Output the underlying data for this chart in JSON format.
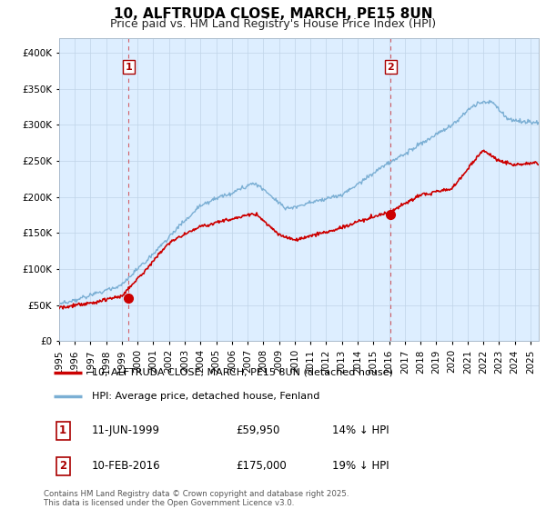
{
  "title": "10, ALFTRUDA CLOSE, MARCH, PE15 8UN",
  "subtitle": "Price paid vs. HM Land Registry's House Price Index (HPI)",
  "ylim": [
    0,
    420000
  ],
  "yticks": [
    0,
    50000,
    100000,
    150000,
    200000,
    250000,
    300000,
    350000,
    400000
  ],
  "legend_line1": "10, ALFTRUDA CLOSE, MARCH, PE15 8UN (detached house)",
  "legend_line2": "HPI: Average price, detached house, Fenland",
  "line_color": "#cc0000",
  "hpi_color": "#7bafd4",
  "marker1_date": 1999.44,
  "marker2_date": 2016.1,
  "marker1_value": 59950,
  "marker2_value": 175000,
  "annotation1": "11-JUN-1999",
  "annotation1_price": "£59,950",
  "annotation1_hpi": "14% ↓ HPI",
  "annotation2": "10-FEB-2016",
  "annotation2_price": "£175,000",
  "annotation2_hpi": "19% ↓ HPI",
  "footer": "Contains HM Land Registry data © Crown copyright and database right 2025.\nThis data is licensed under the Open Government Licence v3.0.",
  "background_color": "#ffffff",
  "chart_bg_color": "#ddeeff",
  "grid_color": "#c0d4e8",
  "vline_color": "#cc0000",
  "title_fontsize": 11,
  "subtitle_fontsize": 9
}
